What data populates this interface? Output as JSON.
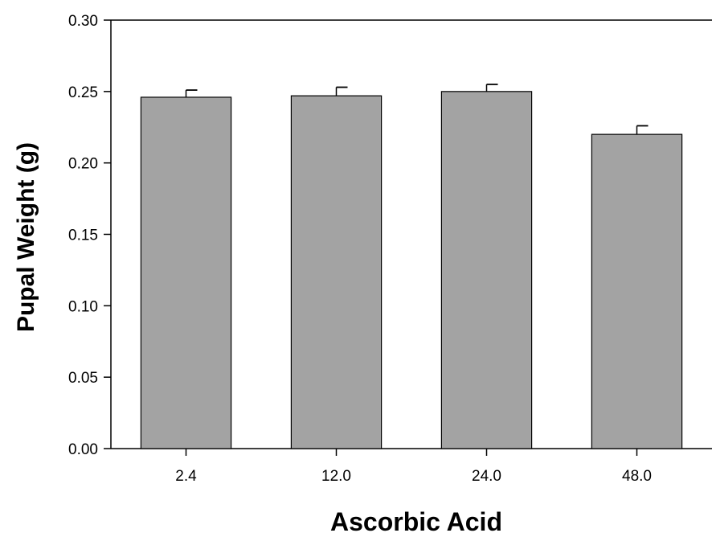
{
  "chart_data": {
    "type": "bar",
    "title": "",
    "xlabel": "Ascorbic Acid",
    "ylabel": "Pupal Weight (g)",
    "categories": [
      "2.4",
      "12.0",
      "24.0",
      "48.0"
    ],
    "values": [
      0.246,
      0.247,
      0.25,
      0.22
    ],
    "error_upper": [
      0.005,
      0.006,
      0.005,
      0.006
    ],
    "ylim": [
      0,
      0.3
    ],
    "yticks": [
      "0.00",
      "0.05",
      "0.10",
      "0.15",
      "0.20",
      "0.25",
      "0.30"
    ],
    "bar_color": "#a3a3a3",
    "grid": false
  }
}
